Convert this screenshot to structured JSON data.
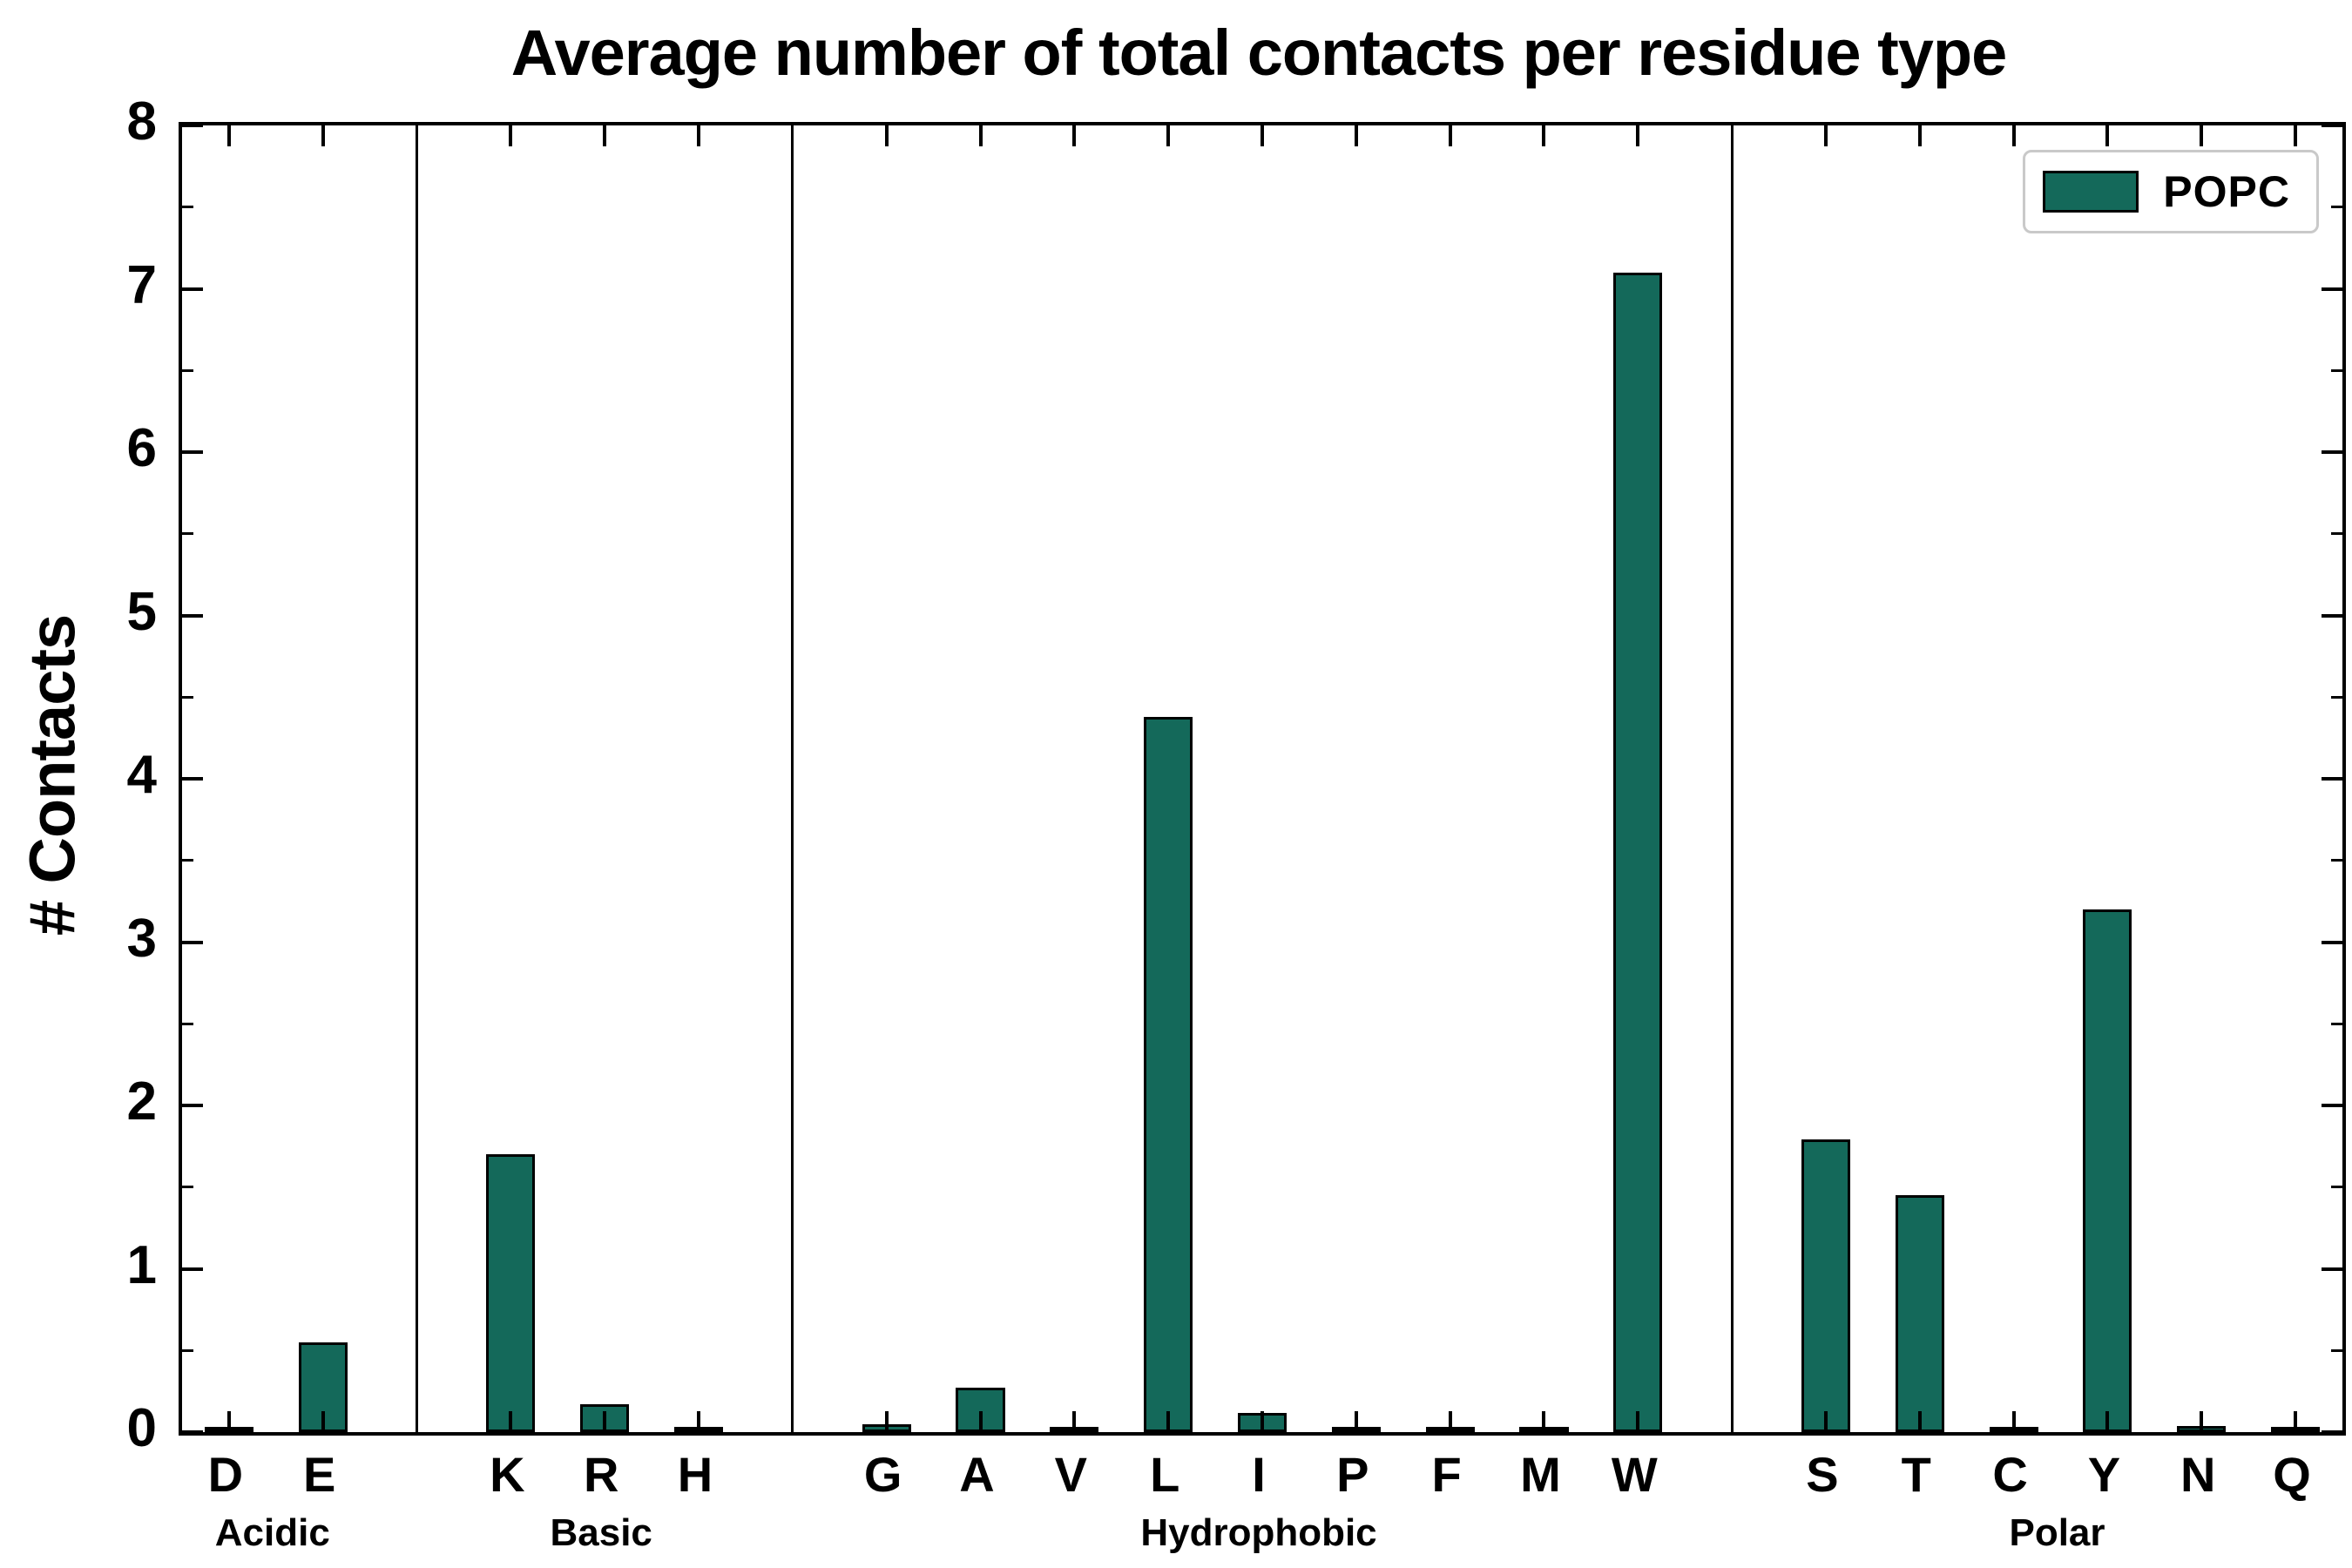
{
  "chart_data": {
    "type": "bar",
    "title": "Average number of total contacts per residue type",
    "ylabel": "# Contacts",
    "ylim": [
      0,
      8
    ],
    "yticks": [
      0,
      1,
      2,
      3,
      4,
      5,
      6,
      7,
      8
    ],
    "minor_tick_step": 0.5,
    "bar_color": "#14695A",
    "bar_edge_color": "#000000",
    "grid": false,
    "legend": {
      "label": "POPC",
      "position": "upper right"
    },
    "groups": [
      {
        "label": "Acidic",
        "categories": [
          "D",
          "E"
        ],
        "values": [
          0.01,
          0.55
        ]
      },
      {
        "label": "Basic",
        "categories": [
          "K",
          "R",
          "H"
        ],
        "values": [
          1.7,
          0.17,
          0.01
        ]
      },
      {
        "label": "Hydrophobic",
        "categories": [
          "G",
          "A",
          "V",
          "L",
          "I",
          "P",
          "F",
          "M",
          "W"
        ],
        "values": [
          0.05,
          0.27,
          0.01,
          4.38,
          0.12,
          0.01,
          0.02,
          0.01,
          7.1
        ]
      },
      {
        "label": "Polar",
        "categories": [
          "S",
          "T",
          "C",
          "Y",
          "N",
          "Q"
        ],
        "values": [
          1.79,
          1.45,
          0.02,
          3.2,
          0.04,
          0.01
        ]
      }
    ]
  }
}
